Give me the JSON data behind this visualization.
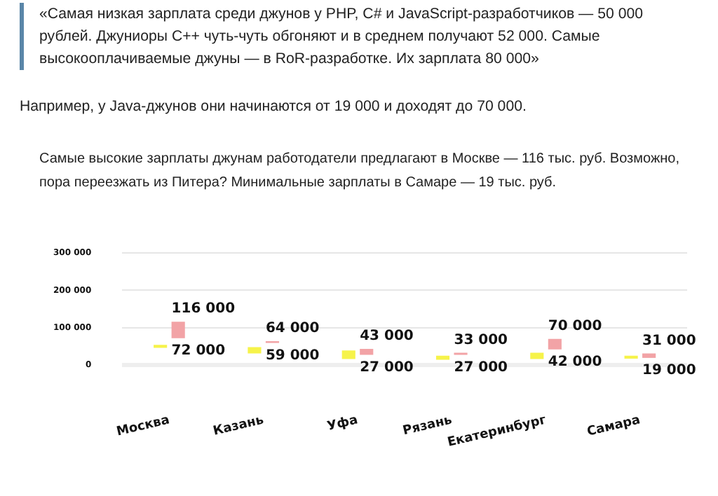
{
  "chart_data": {
    "type": "bar",
    "title": "Самые высокие зарплаты джунам работодатели предлагают в Москве — 116 тыс. руб. Возможно, пора переезжать из Питера? Минимальные зарплаты в Самаре — 19 тыс. руб.",
    "categories": [
      "Москва",
      "Казань",
      "Уфа",
      "Рязань",
      "Екатеринбург",
      "Самара"
    ],
    "series": [
      {
        "color": "#f6f34a",
        "base": [
          46000,
          31000,
          16000,
          14000,
          16000,
          17000
        ],
        "values": [
          8000,
          17000,
          23000,
          11000,
          17000,
          8000
        ]
      },
      {
        "color": "#f2a3a6",
        "base": [
          72000,
          59000,
          27000,
          27000,
          42000,
          19000
        ],
        "values": [
          44000,
          5000,
          16000,
          6000,
          28000,
          12000
        ]
      }
    ],
    "ylim": [
      0,
      300000
    ],
    "yticks": [
      0,
      {
        "value": 100000,
        "label": "100 000"
      },
      {
        "value": 200000,
        "label": "200 000"
      },
      {
        "value": 300000,
        "label": "300 000"
      }
    ],
    "grid": "y",
    "legend": false,
    "annotations": [
      "«Самая низкая зарплата среди джунов у PHP, C# и JavaScript-разработчиков — 50 000 рублей. Джуниоры C++ чуть-чуть обгоняют и в среднем получают 52 000. Самые высокооплачиваемые джуны — в RoR-разработке. Их зарплата 80 000»",
      "Например, у Java-джунов они начинаются от 19 000 и доходят до 70 000.",
      {
        "text": "116 000",
        "x": "Москва",
        "y": 116000
      },
      {
        "text": "72 000",
        "x": "Москва",
        "y": 72000
      },
      {
        "text": "64 000",
        "x": "Казань",
        "y": 64000
      },
      {
        "text": "59 000",
        "x": "Казань",
        "y": 59000
      },
      {
        "text": "43 000",
        "x": "Уфа",
        "y": 43000
      },
      {
        "text": "27 000",
        "x": "Уфа",
        "y": 27000
      },
      {
        "text": "33 000",
        "x": "Рязань",
        "y": 33000
      },
      {
        "text": "27 000",
        "x": "Рязань",
        "y": 27000
      },
      {
        "text": "70 000",
        "x": "Екатеринбург",
        "y": 70000
      },
      {
        "text": "42 000",
        "x": "Екатеринбург",
        "y": 42000
      },
      {
        "text": "31 000",
        "x": "Самара",
        "y": 31000
      },
      {
        "text": "19 000",
        "x": "Самара",
        "y": 19000
      }
    ]
  }
}
